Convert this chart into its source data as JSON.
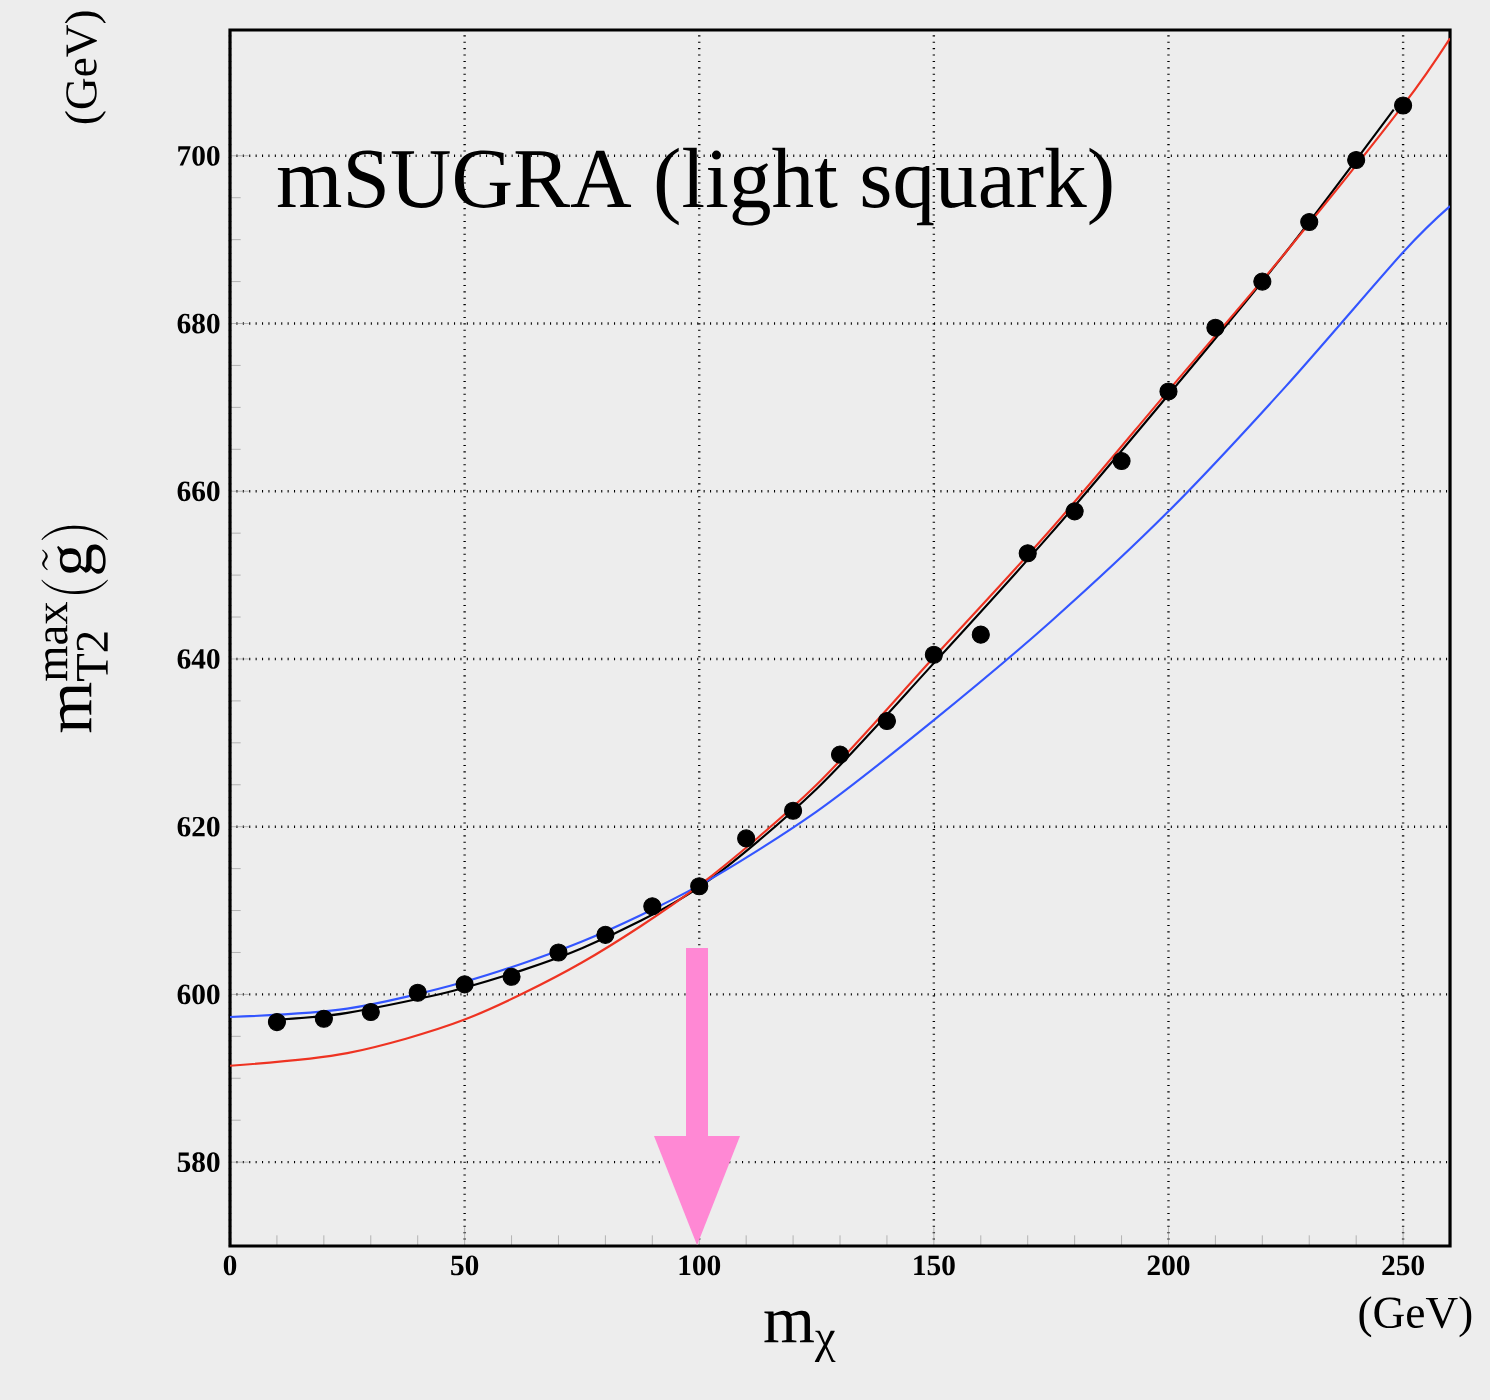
{
  "chart_data": {
    "type": "line",
    "title": "mSUGRA (light squark)",
    "xlabel": "m$_{χ}$",
    "ylabel": "\\mathrm{m}_{\\mathrm{T2}}^{\\mathrm{max}}(\\tilde{\\mathrm{g}})",
    "annotations": [
      "(GeV)",
      "(GeV)"
    ],
    "xlim": [
      0,
      260
    ],
    "ylim": [
      570,
      715
    ],
    "xticks": [
      0,
      50,
      100,
      150,
      200,
      250
    ],
    "yticks": [
      580,
      600,
      620,
      640,
      660,
      680,
      700
    ],
    "grid": true,
    "legend": false,
    "series": [
      {
        "color": "#000000",
        "marker": "none",
        "x": [
          10,
          25,
          50,
          75,
          100,
          125,
          150,
          175,
          200,
          225,
          248
        ],
        "values": [
          597,
          597.8,
          600.8,
          605.5,
          612.8,
          624.5,
          639.5,
          655,
          671.5,
          688.5,
          705.5
        ]
      },
      {
        "color": "#3355ff",
        "marker": "none",
        "x": [
          0,
          25,
          50,
          75,
          100,
          125,
          150,
          175,
          200,
          225,
          250,
          260
        ],
        "values": [
          597.3,
          598.3,
          601.5,
          606.3,
          613,
          621.8,
          632.7,
          644.5,
          657.6,
          672.5,
          688.5,
          694
        ]
      },
      {
        "color": "#ee3322",
        "marker": "none",
        "x": [
          0,
          25,
          50,
          75,
          100,
          125,
          150,
          175,
          200,
          225,
          250,
          260
        ],
        "values": [
          591.5,
          593,
          597,
          603.8,
          613,
          625,
          640.2,
          655.5,
          672,
          688.5,
          706,
          714
        ]
      },
      {
        "type": "scatter",
        "color": "#000000",
        "marker": "circle",
        "x": [
          10,
          20,
          30,
          40,
          50,
          60,
          70,
          80,
          90,
          100,
          110,
          120,
          130,
          140,
          150,
          160,
          170,
          180,
          190,
          200,
          210,
          220,
          230,
          240,
          250
        ],
        "values": [
          596.7,
          597.1,
          597.9,
          600.2,
          601.2,
          602.1,
          605.0,
          607.1,
          610.5,
          612.9,
          618.6,
          621.9,
          628.6,
          632.6,
          640.5,
          642.9,
          652.6,
          657.6,
          663.6,
          671.9,
          679.5,
          685.0,
          692.1,
          699.5,
          706
        ]
      }
    ]
  }
}
